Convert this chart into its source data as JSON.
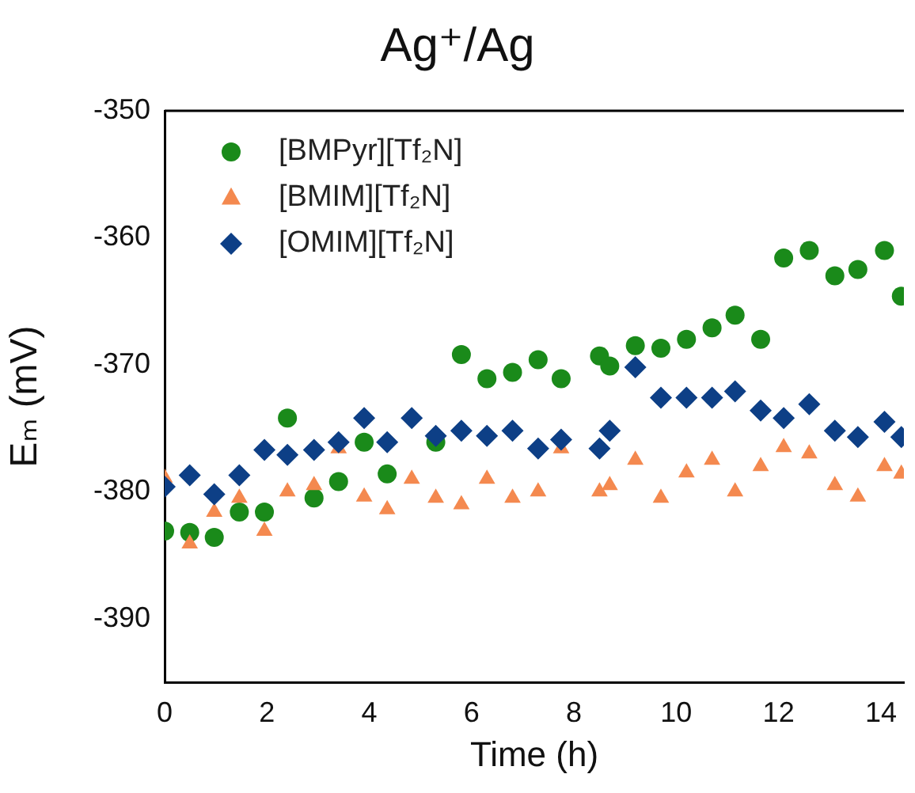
{
  "chart_data": {
    "type": "scatter",
    "title": "Ag⁺/Ag",
    "xlabel": "Time (h)",
    "ylabel": "Eₘ (mV)",
    "x": [
      0,
      0.49,
      0.97,
      1.46,
      1.95,
      2.4,
      2.92,
      3.4,
      3.9,
      4.35,
      4.83,
      5.3,
      5.8,
      6.3,
      6.8,
      7.3,
      7.75,
      8.5,
      8.7,
      9.2,
      9.7,
      10.2,
      10.7,
      11.15,
      11.65,
      12.1,
      12.6,
      13.1,
      13.55,
      14.07,
      14.4
    ],
    "xlim": [
      0,
      14.45
    ],
    "xticks": [
      0,
      2,
      4,
      6,
      8,
      10,
      12,
      14
    ],
    "ylim": [
      -395,
      -350
    ],
    "yticks": [
      -390,
      -380,
      -370,
      -360,
      -350
    ],
    "grid": false,
    "legend": "top left",
    "series": [
      {
        "name": "[BMPyr][Tf₂N]",
        "color": "#1a8a1a",
        "marker": "circle",
        "values": [
          -383.1,
          -383.2,
          -383.6,
          -381.6,
          -381.6,
          -374.2,
          -380.5,
          -379.2,
          -376.1,
          -378.6,
          null,
          -376.1,
          -369.2,
          -371.1,
          -370.6,
          -369.6,
          -371.1,
          -369.3,
          -370.1,
          -368.5,
          -368.7,
          -368,
          -367.1,
          -366.1,
          -368,
          -361.6,
          -361,
          -363,
          -362.5,
          -361,
          -364.6
        ]
      },
      {
        "name": "[BMIM][Tf₂N]",
        "color": "#f4894f",
        "marker": "triangle",
        "values": [
          -378.9,
          -384.1,
          -381.6,
          -380.5,
          -383.1,
          -380,
          -379.5,
          -376.6,
          -380.4,
          -381.4,
          -379,
          -380.5,
          -381,
          -379,
          -380.5,
          -380,
          -376.6,
          -380,
          -379.5,
          -377.5,
          -380.5,
          -378.5,
          -377.5,
          -380,
          -378,
          -376.5,
          -377,
          -379.5,
          -380.4,
          -378,
          -378.6
        ]
      },
      {
        "name": "[OMIM][Tf₂N]",
        "color": "#0d3f86",
        "marker": "diamond",
        "values": [
          -379.6,
          -378.7,
          -380.2,
          -378.7,
          -376.7,
          -377.1,
          -376.7,
          -376.1,
          -374.2,
          -376.1,
          -374.2,
          -375.6,
          -375.2,
          -375.6,
          -375.2,
          -376.6,
          -375.9,
          -376.6,
          -375.2,
          -370.2,
          -372.6,
          -372.6,
          -372.6,
          -372.1,
          -373.6,
          -374.2,
          -373.1,
          -375.2,
          -375.7,
          -374.5,
          -375.7
        ]
      }
    ]
  }
}
